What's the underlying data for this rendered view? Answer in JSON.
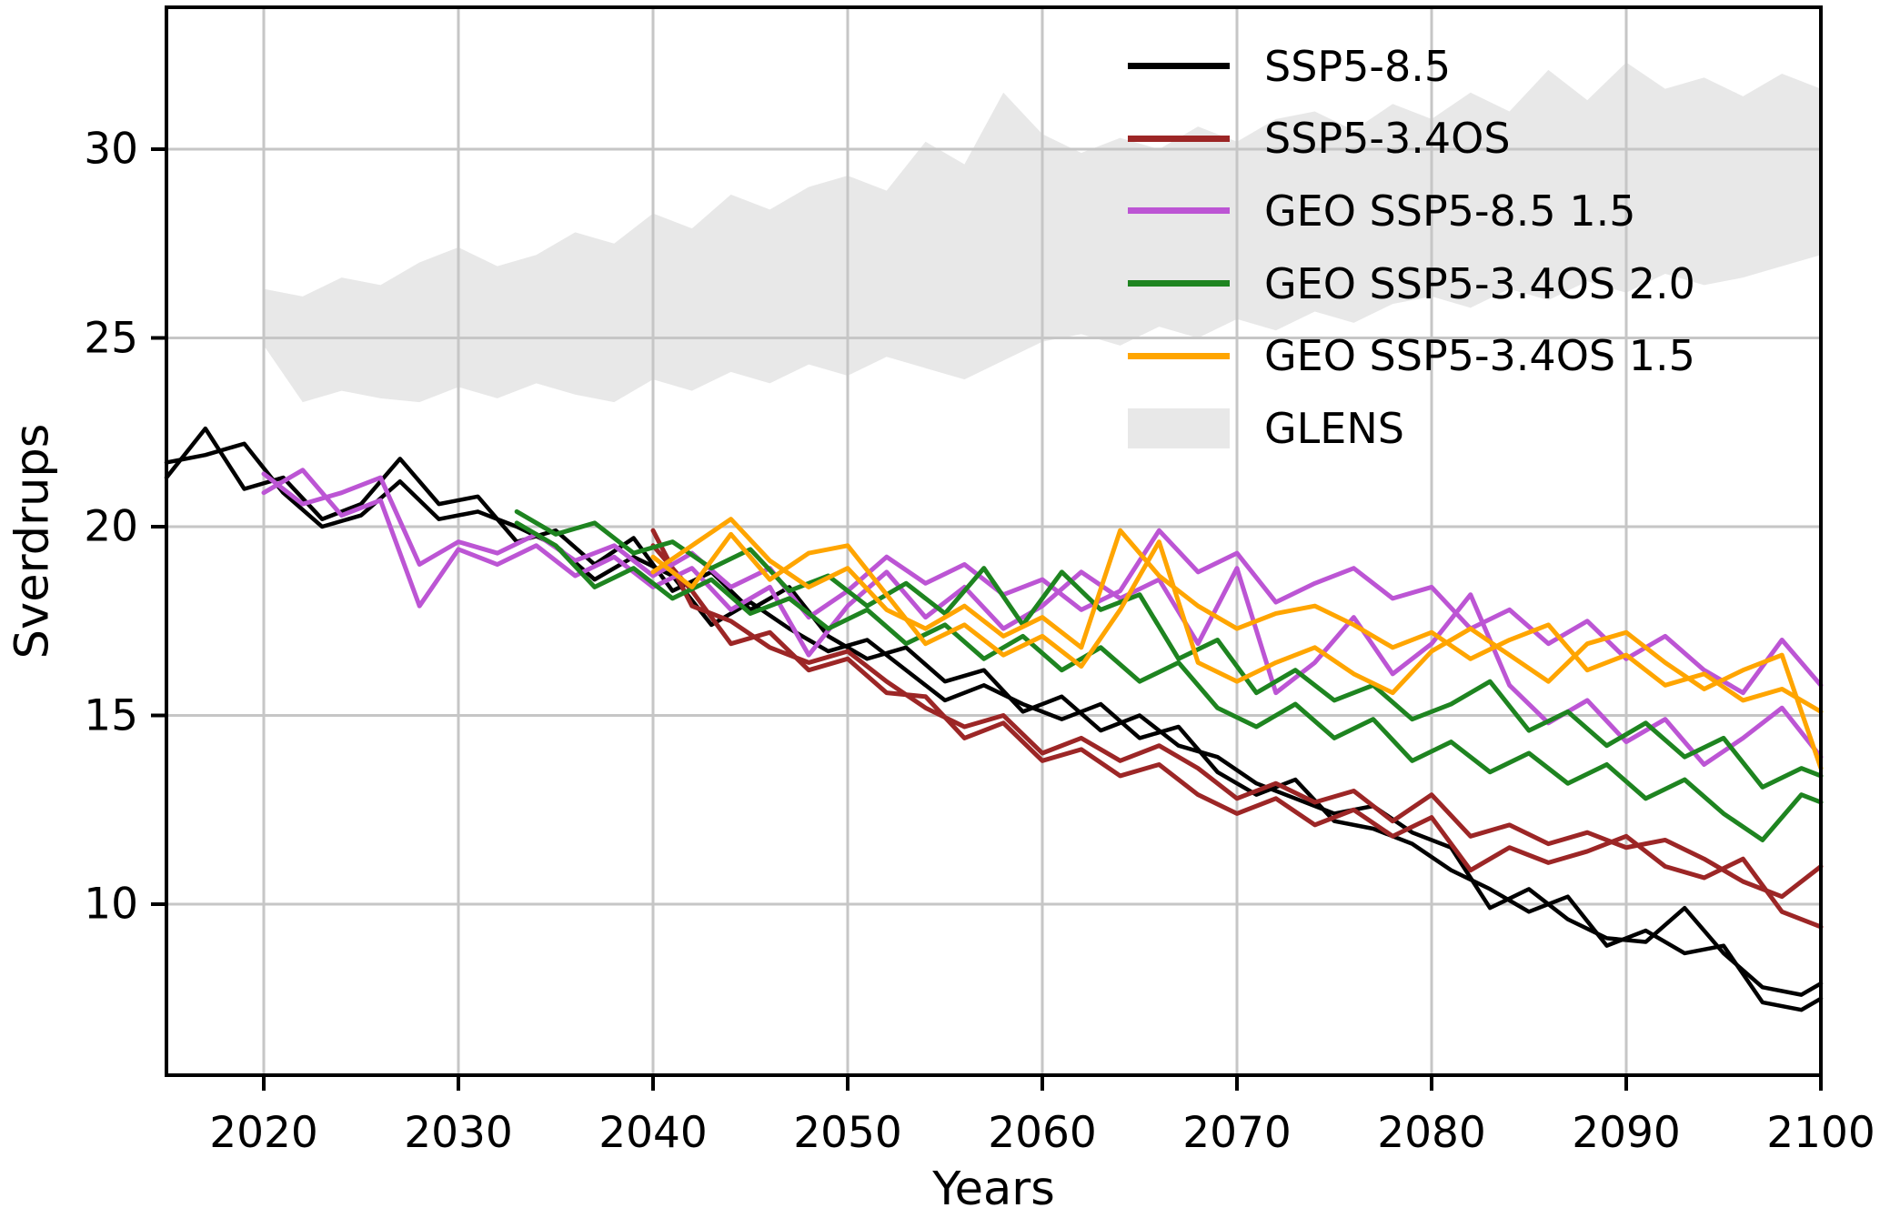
{
  "figure_title": "",
  "legend": {
    "entries": [
      {
        "label": "SSP5-8.5",
        "color": "#000000",
        "swatch": "line"
      },
      {
        "label": "SSP5-3.4OS",
        "color": "#9c2626",
        "swatch": "line"
      },
      {
        "label": "GEO SSP5-8.5 1.5",
        "color": "#bc55d4",
        "swatch": "line"
      },
      {
        "label": "GEO SSP5-3.4OS 2.0",
        "color": "#1e8420",
        "swatch": "line"
      },
      {
        "label": "GEO SSP5-3.4OS 1.5",
        "color": "#ffa500",
        "swatch": "line"
      },
      {
        "label": "GLENS",
        "color": "#e8e8e8",
        "swatch": "patch"
      }
    ]
  },
  "chart_data": {
    "type": "line",
    "title": "",
    "xlabel": "Years",
    "ylabel": "Sverdrups",
    "xlim": [
      2015,
      2100
    ],
    "ylim": [
      5.47,
      33.76
    ],
    "x_ticks": [
      2020,
      2030,
      2040,
      2050,
      2060,
      2070,
      2080,
      2090,
      2100
    ],
    "y_ticks": [
      10,
      15,
      20,
      25,
      30
    ],
    "grid": true,
    "grid_color": "#c6c6c6",
    "legend_position": "upper right",
    "band": {
      "name": "GLENS",
      "color": "#e8e8e8",
      "years": [
        2020,
        2022,
        2024,
        2026,
        2028,
        2030,
        2032,
        2034,
        2036,
        2038,
        2040,
        2042,
        2044,
        2046,
        2048,
        2050,
        2052,
        2054,
        2056,
        2058,
        2060,
        2062,
        2064,
        2066,
        2068,
        2070,
        2072,
        2074,
        2076,
        2078,
        2080,
        2082,
        2084,
        2086,
        2088,
        2090,
        2092,
        2094,
        2096,
        2098,
        2100
      ],
      "lower": [
        24.8,
        23.3,
        23.6,
        23.4,
        23.3,
        23.7,
        23.4,
        23.8,
        23.5,
        23.3,
        23.9,
        23.6,
        24.1,
        23.8,
        24.3,
        24.0,
        24.5,
        24.2,
        23.9,
        24.4,
        24.9,
        25.1,
        24.8,
        25.3,
        25.0,
        25.5,
        25.2,
        25.7,
        25.4,
        25.9,
        26.1,
        25.8,
        26.3,
        26.0,
        26.5,
        26.2,
        26.7,
        26.4,
        26.6,
        26.9,
        27.2
      ],
      "upper": [
        26.3,
        26.1,
        26.6,
        26.4,
        27.0,
        27.4,
        26.9,
        27.2,
        27.8,
        27.5,
        28.3,
        27.9,
        28.8,
        28.4,
        29.0,
        29.3,
        28.9,
        30.2,
        29.6,
        31.5,
        30.4,
        29.9,
        30.3,
        30.0,
        30.6,
        30.2,
        30.8,
        31.0,
        30.5,
        31.2,
        30.8,
        31.5,
        31.0,
        32.1,
        31.3,
        32.3,
        31.6,
        31.9,
        31.4,
        32.0,
        31.6
      ]
    },
    "series": [
      {
        "name": "SSP5-8.5",
        "color": "#000000",
        "linewidth": 4.5,
        "members": [
          {
            "years": [
              2015,
              2017,
              2019,
              2021,
              2023,
              2025,
              2027,
              2029,
              2031,
              2033,
              2035,
              2037,
              2039,
              2041,
              2043,
              2045,
              2047,
              2049,
              2051,
              2053,
              2055,
              2057,
              2059,
              2061,
              2063,
              2065,
              2067,
              2069,
              2071,
              2073,
              2075,
              2077,
              2079,
              2081,
              2083,
              2085,
              2087,
              2089,
              2091,
              2093,
              2095,
              2097,
              2099,
              2100
            ],
            "values": [
              21.3,
              22.6,
              21.0,
              21.3,
              20.2,
              20.6,
              21.8,
              20.6,
              20.8,
              19.6,
              19.9,
              19.0,
              19.7,
              18.3,
              18.8,
              17.8,
              18.4,
              17.1,
              16.5,
              16.8,
              15.9,
              16.2,
              15.1,
              15.5,
              14.6,
              15.0,
              14.2,
              13.9,
              13.2,
              12.8,
              12.4,
              12.6,
              11.9,
              11.5,
              9.9,
              10.4,
              9.6,
              9.1,
              9.0,
              9.9,
              8.7,
              7.8,
              7.6,
              7.9
            ]
          },
          {
            "years": [
              2015,
              2017,
              2019,
              2021,
              2023,
              2025,
              2027,
              2029,
              2031,
              2033,
              2035,
              2037,
              2039,
              2041,
              2043,
              2045,
              2047,
              2049,
              2051,
              2053,
              2055,
              2057,
              2059,
              2061,
              2063,
              2065,
              2067,
              2069,
              2071,
              2073,
              2075,
              2077,
              2079,
              2081,
              2083,
              2085,
              2087,
              2089,
              2091,
              2093,
              2095,
              2097,
              2099,
              2100
            ],
            "values": [
              21.7,
              21.9,
              22.2,
              20.9,
              20.0,
              20.3,
              21.2,
              20.2,
              20.4,
              20.0,
              19.5,
              18.6,
              19.2,
              18.7,
              17.4,
              18.0,
              17.3,
              16.7,
              17.0,
              16.2,
              15.4,
              15.8,
              15.3,
              14.9,
              15.3,
              14.4,
              14.7,
              13.5,
              12.9,
              13.3,
              12.2,
              12.0,
              11.6,
              10.9,
              10.4,
              9.8,
              10.2,
              8.9,
              9.3,
              8.7,
              8.9,
              7.4,
              7.2,
              7.5
            ]
          }
        ]
      },
      {
        "name": "SSP5-3.4OS",
        "color": "#9c2626",
        "linewidth": 5,
        "members": [
          {
            "years": [
              2040,
              2042,
              2044,
              2046,
              2048,
              2050,
              2052,
              2054,
              2056,
              2058,
              2060,
              2062,
              2064,
              2066,
              2068,
              2070,
              2072,
              2074,
              2076,
              2078,
              2080,
              2082,
              2084,
              2086,
              2088,
              2090,
              2092,
              2094,
              2096,
              2098,
              2100
            ],
            "values": [
              19.9,
              17.9,
              17.5,
              16.8,
              16.4,
              16.7,
              15.9,
              15.2,
              14.7,
              15.0,
              14.0,
              14.4,
              13.8,
              14.2,
              13.6,
              12.8,
              13.2,
              12.7,
              13.0,
              12.2,
              12.9,
              11.8,
              12.1,
              11.6,
              11.9,
              11.5,
              11.7,
              11.2,
              10.6,
              10.2,
              11.0
            ]
          },
          {
            "years": [
              2040,
              2042,
              2044,
              2046,
              2048,
              2050,
              2052,
              2054,
              2056,
              2058,
              2060,
              2062,
              2064,
              2066,
              2068,
              2070,
              2072,
              2074,
              2076,
              2078,
              2080,
              2082,
              2084,
              2086,
              2088,
              2090,
              2092,
              2094,
              2096,
              2098,
              2100
            ],
            "values": [
              19.5,
              18.3,
              16.9,
              17.2,
              16.2,
              16.5,
              15.6,
              15.5,
              14.4,
              14.8,
              13.8,
              14.1,
              13.4,
              13.7,
              12.9,
              12.4,
              12.8,
              12.1,
              12.5,
              11.8,
              12.3,
              10.9,
              11.5,
              11.1,
              11.4,
              11.8,
              11.0,
              10.7,
              11.2,
              9.8,
              9.4
            ]
          }
        ]
      },
      {
        "name": "GEO SSP5-8.5 1.5",
        "color": "#bc55d4",
        "linewidth": 5,
        "members": [
          {
            "years": [
              2020,
              2022,
              2024,
              2026,
              2028,
              2030,
              2032,
              2034,
              2036,
              2038,
              2040,
              2042,
              2044,
              2046,
              2048,
              2050,
              2052,
              2054,
              2056,
              2058,
              2060,
              2062,
              2064,
              2066,
              2068,
              2070,
              2072,
              2074,
              2076,
              2078,
              2080,
              2082,
              2084,
              2086,
              2088,
              2090,
              2092,
              2094,
              2096,
              2098,
              2100
            ],
            "values": [
              21.4,
              20.6,
              20.9,
              21.3,
              19.0,
              19.6,
              19.3,
              19.8,
              19.1,
              19.5,
              18.7,
              19.3,
              18.4,
              18.9,
              17.6,
              18.3,
              19.2,
              18.5,
              19.0,
              18.2,
              18.6,
              17.8,
              18.3,
              19.9,
              18.8,
              19.3,
              18.0,
              18.5,
              18.9,
              18.1,
              18.4,
              17.3,
              17.8,
              16.9,
              17.5,
              16.5,
              17.1,
              16.2,
              15.6,
              17.0,
              15.8
            ]
          },
          {
            "years": [
              2020,
              2022,
              2024,
              2026,
              2028,
              2030,
              2032,
              2034,
              2036,
              2038,
              2040,
              2042,
              2044,
              2046,
              2048,
              2050,
              2052,
              2054,
              2056,
              2058,
              2060,
              2062,
              2064,
              2066,
              2068,
              2070,
              2072,
              2074,
              2076,
              2078,
              2080,
              2082,
              2084,
              2086,
              2088,
              2090,
              2092,
              2094,
              2096,
              2098,
              2100
            ],
            "values": [
              20.9,
              21.5,
              20.3,
              20.7,
              17.9,
              19.4,
              19.0,
              19.5,
              18.7,
              19.2,
              18.4,
              18.9,
              17.8,
              18.4,
              16.6,
              17.9,
              18.8,
              17.6,
              18.4,
              17.3,
              17.9,
              18.8,
              18.1,
              18.6,
              16.9,
              18.9,
              15.6,
              16.4,
              17.6,
              16.1,
              16.9,
              18.2,
              15.8,
              14.8,
              15.4,
              14.3,
              14.9,
              13.7,
              14.4,
              15.2,
              13.9
            ]
          }
        ]
      },
      {
        "name": "GEO SSP5-3.4OS 2.0",
        "color": "#1e8420",
        "linewidth": 5,
        "members": [
          {
            "years": [
              2033,
              2035,
              2037,
              2039,
              2041,
              2043,
              2045,
              2047,
              2049,
              2051,
              2053,
              2055,
              2057,
              2059,
              2061,
              2063,
              2065,
              2067,
              2069,
              2071,
              2073,
              2075,
              2077,
              2079,
              2081,
              2083,
              2085,
              2087,
              2089,
              2091,
              2093,
              2095,
              2097,
              2099,
              2100
            ],
            "values": [
              20.4,
              19.8,
              20.1,
              19.3,
              19.6,
              18.9,
              19.4,
              18.3,
              18.7,
              17.9,
              18.5,
              17.7,
              18.9,
              17.4,
              18.8,
              17.8,
              18.2,
              16.5,
              17.0,
              15.6,
              16.2,
              15.4,
              15.8,
              14.9,
              15.3,
              15.9,
              14.6,
              15.1,
              14.2,
              14.8,
              13.9,
              14.4,
              13.1,
              13.6,
              13.4
            ]
          },
          {
            "years": [
              2033,
              2035,
              2037,
              2039,
              2041,
              2043,
              2045,
              2047,
              2049,
              2051,
              2053,
              2055,
              2057,
              2059,
              2061,
              2063,
              2065,
              2067,
              2069,
              2071,
              2073,
              2075,
              2077,
              2079,
              2081,
              2083,
              2085,
              2087,
              2089,
              2091,
              2093,
              2095,
              2097,
              2099,
              2100
            ],
            "values": [
              20.1,
              19.5,
              18.4,
              18.9,
              18.1,
              18.6,
              17.7,
              18.1,
              17.3,
              17.8,
              16.9,
              17.4,
              16.5,
              17.1,
              16.2,
              16.8,
              15.9,
              16.4,
              15.2,
              14.7,
              15.3,
              14.4,
              14.9,
              13.8,
              14.3,
              13.5,
              14.0,
              13.2,
              13.7,
              12.8,
              13.3,
              12.4,
              11.7,
              12.9,
              12.7
            ]
          }
        ]
      },
      {
        "name": "GEO SSP5-3.4OS 1.5",
        "color": "#ffa500",
        "linewidth": 5,
        "members": [
          {
            "years": [
              2040,
              2042,
              2044,
              2046,
              2048,
              2050,
              2052,
              2054,
              2056,
              2058,
              2060,
              2062,
              2064,
              2066,
              2068,
              2070,
              2072,
              2074,
              2076,
              2078,
              2080,
              2082,
              2084,
              2086,
              2088,
              2090,
              2092,
              2094,
              2096,
              2098,
              2100
            ],
            "values": [
              18.8,
              19.5,
              20.2,
              19.1,
              18.4,
              18.9,
              17.8,
              17.3,
              17.9,
              17.1,
              17.6,
              16.8,
              19.9,
              18.7,
              17.9,
              17.3,
              17.7,
              17.9,
              17.4,
              16.8,
              17.2,
              16.5,
              17.0,
              17.4,
              16.2,
              16.6,
              15.8,
              16.1,
              15.4,
              15.7,
              15.1
            ]
          },
          {
            "years": [
              2040,
              2042,
              2044,
              2046,
              2048,
              2050,
              2052,
              2054,
              2056,
              2058,
              2060,
              2062,
              2064,
              2066,
              2068,
              2070,
              2072,
              2074,
              2076,
              2078,
              2080,
              2082,
              2084,
              2086,
              2088,
              2090,
              2092,
              2094,
              2096,
              2098,
              2100
            ],
            "values": [
              19.2,
              18.4,
              19.8,
              18.6,
              19.3,
              19.5,
              18.2,
              16.9,
              17.4,
              16.6,
              17.1,
              16.3,
              17.8,
              19.6,
              16.4,
              15.9,
              16.4,
              16.8,
              16.1,
              15.6,
              16.7,
              17.3,
              16.6,
              15.9,
              16.9,
              17.2,
              16.4,
              15.7,
              16.2,
              16.6,
              13.6
            ]
          }
        ]
      }
    ]
  }
}
